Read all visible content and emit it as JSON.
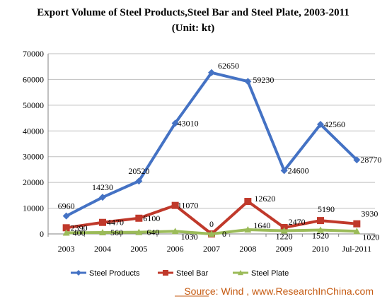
{
  "chart_data": {
    "type": "line",
    "title": "Export Volume of Steel Products,Steel Bar and Steel Plate, 2003-2011",
    "subtitle": "(Unit: kt)",
    "categories": [
      "2003",
      "2004",
      "2005",
      "2006",
      "2007",
      "2008",
      "2009",
      "2010",
      "Jul-2011"
    ],
    "ylim": [
      0,
      70000
    ],
    "yticks": [
      "0",
      "10000",
      "20000",
      "30000",
      "40000",
      "50000",
      "60000",
      "70000"
    ],
    "grid": true,
    "legend_position": "bottom",
    "series": [
      {
        "name": "Steel Products",
        "color": "#4472C4",
        "marker": "diamond",
        "values": [
          6960,
          14230,
          20520,
          43010,
          62650,
          59230,
          24600,
          42560,
          28770
        ],
        "labels": [
          "6960",
          "14230",
          "20520",
          "43010",
          "62650",
          "59230",
          "24600",
          "42560",
          "28770"
        ]
      },
      {
        "name": "Steel Bar",
        "color": "#C0392B",
        "marker": "square",
        "values": [
          2390,
          4470,
          6100,
          11070,
          0,
          12620,
          2470,
          5190,
          3930
        ],
        "labels": [
          "2390",
          "4470",
          "6100",
          "11070",
          "0",
          "12620",
          "2470",
          "5190",
          "3930"
        ]
      },
      {
        "name": "Steel Plate",
        "color": "#9BBB59",
        "marker": "triangle",
        "values": [
          400,
          560,
          640,
          1030,
          0,
          1640,
          1220,
          1520,
          1020
        ],
        "labels": [
          "400",
          "560",
          "640",
          "1030",
          "0",
          "1640",
          "1220",
          "1520",
          "1020"
        ]
      }
    ]
  },
  "source": "Source: Wind , www.ResearchInChina.com"
}
